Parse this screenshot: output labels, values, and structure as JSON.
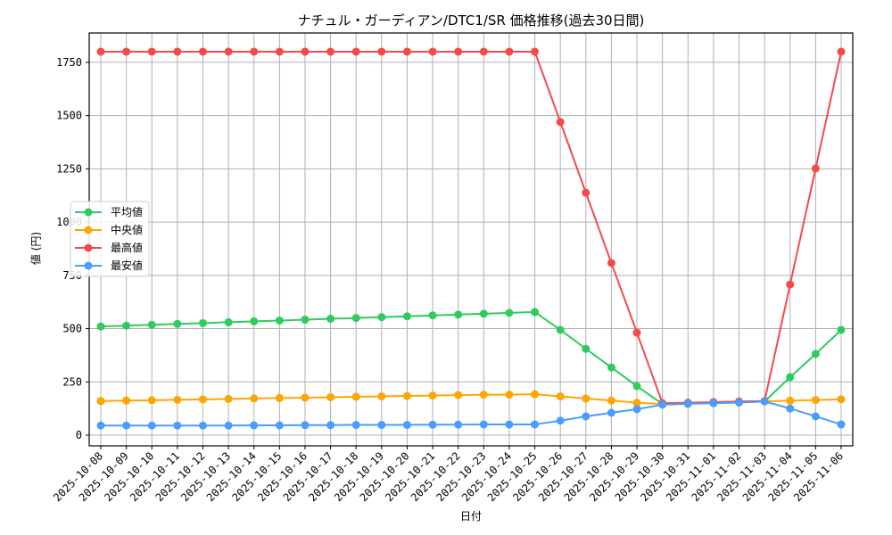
{
  "chart_data": {
    "type": "line",
    "title": "ナチュル・ガーディアン/DTC1/SR 価格推移(過去30日間)",
    "xlabel": "日付",
    "ylabel": "値 (円)",
    "ylim": [
      -50,
      1885
    ],
    "yticks": [
      0,
      250,
      500,
      750,
      1000,
      1250,
      1500,
      1750
    ],
    "grid": true,
    "legend_position": "center left",
    "categories": [
      "2025-10-08",
      "2025-10-09",
      "2025-10-10",
      "2025-10-11",
      "2025-10-12",
      "2025-10-13",
      "2025-10-14",
      "2025-10-15",
      "2025-10-16",
      "2025-10-17",
      "2025-10-18",
      "2025-10-19",
      "2025-10-20",
      "2025-10-21",
      "2025-10-22",
      "2025-10-23",
      "2025-10-24",
      "2025-10-25",
      "2025-10-26",
      "2025-10-27",
      "2025-10-28",
      "2025-10-29",
      "2025-10-30",
      "2025-10-31",
      "2025-11-01",
      "2025-11-02",
      "2025-11-03",
      "2025-11-04",
      "2025-11-05",
      "2025-11-06"
    ],
    "series": [
      {
        "name": "平均値",
        "color": "#2ecc5f",
        "values": [
          510,
          514,
          518,
          522,
          526,
          530,
          534,
          538,
          542,
          546,
          550,
          554,
          558,
          562,
          566,
          570,
          574,
          578,
          494,
          405,
          318,
          230,
          146,
          150,
          152,
          155,
          158,
          272,
          381,
          494
        ]
      },
      {
        "name": "中央値",
        "color": "#ffa500",
        "values": [
          160,
          162,
          164,
          166,
          168,
          170,
          172,
          174,
          176,
          178,
          180,
          182,
          184,
          186,
          188,
          190,
          190,
          192,
          182,
          172,
          162,
          152,
          146,
          150,
          152,
          155,
          158,
          162,
          165,
          168
        ]
      },
      {
        "name": "最高値",
        "color": "#f44a4a",
        "values": [
          1800,
          1800,
          1800,
          1800,
          1800,
          1800,
          1800,
          1800,
          1800,
          1800,
          1800,
          1800,
          1800,
          1800,
          1800,
          1800,
          1800,
          1800,
          1470,
          1138,
          808,
          481,
          150,
          152,
          155,
          158,
          160,
          707,
          1252,
          1800
        ]
      },
      {
        "name": "最安値",
        "color": "#4a9cff",
        "values": [
          45,
          45,
          45,
          45,
          45,
          45,
          46,
          46,
          47,
          47,
          48,
          48,
          48,
          49,
          49,
          50,
          50,
          50,
          68,
          88,
          105,
          122,
          143,
          147,
          150,
          153,
          158,
          125,
          88,
          50
        ]
      }
    ]
  }
}
